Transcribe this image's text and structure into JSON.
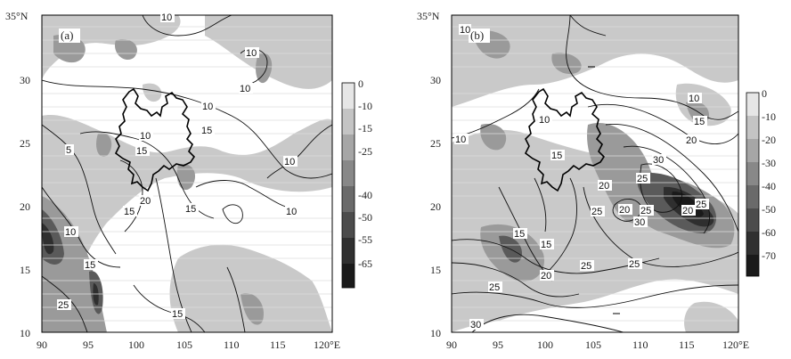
{
  "panels": [
    {
      "tag": "(a)",
      "lat_ticks": [
        "35°N",
        "30",
        "25",
        "20",
        "15",
        "10"
      ],
      "lon_ticks": [
        "90",
        "95",
        "100",
        "105",
        "110",
        "115",
        "120°E"
      ],
      "contour_labels": [
        "10",
        "10",
        "10",
        "10",
        "15",
        "10",
        "15",
        "15",
        "20",
        "15",
        "10",
        "10",
        "10",
        "15",
        "25",
        "15",
        "5"
      ],
      "colorbar": {
        "ticks": [
          "0",
          "-10",
          "-15",
          "-25",
          "-40",
          "-50",
          "-55",
          "-65"
        ]
      }
    },
    {
      "tag": "(b)",
      "lat_ticks": [
        "35°N",
        "30",
        "25",
        "20",
        "15",
        "10"
      ],
      "lon_ticks": [
        "90",
        "95",
        "100",
        "105",
        "110",
        "115",
        "120°E"
      ],
      "contour_labels": [
        "10",
        "10",
        "15",
        "10",
        "15",
        "20",
        "30",
        "25",
        "20",
        "25",
        "20",
        "25",
        "30",
        "25",
        "20",
        "15",
        "15",
        "25",
        "25",
        "20",
        "25",
        "30",
        "10"
      ],
      "colorbar": {
        "ticks": [
          "0",
          "-10",
          "-20",
          "-30",
          "-40",
          "-50",
          "-60",
          "-70"
        ]
      }
    }
  ]
}
